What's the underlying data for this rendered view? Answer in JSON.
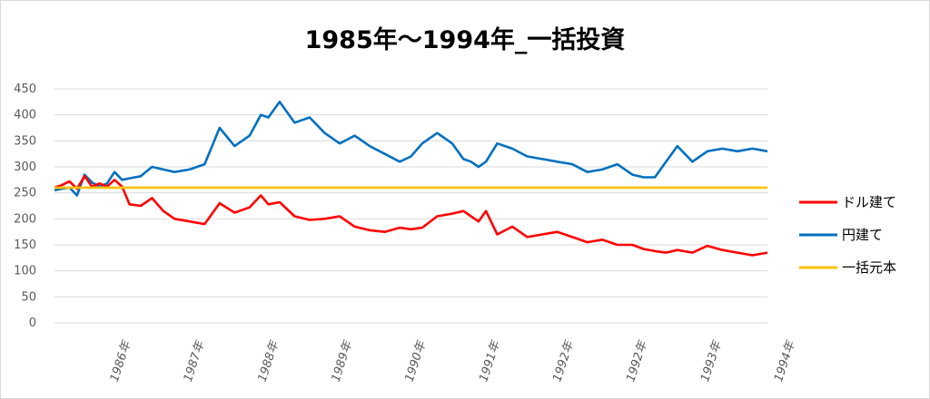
{
  "chart_data": {
    "type": "line",
    "title": "1985年～1994年_一括投資",
    "ylim": [
      0,
      450
    ],
    "yticks": [
      0,
      50,
      100,
      150,
      200,
      250,
      300,
      350,
      400,
      450
    ],
    "xlim": [
      1985.0,
      1994.5
    ],
    "xtick_labels": [
      "1986年",
      "1987年",
      "1988年",
      "1989年",
      "1990年",
      "1991年",
      "1992年",
      "1992年",
      "1993年",
      "1994年"
    ],
    "xtick_positions": [
      1985.95,
      1986.93,
      1987.92,
      1988.9,
      1989.88,
      1990.87,
      1991.85,
      1992.83,
      1993.82,
      1994.8
    ],
    "grid": true,
    "legend_position": "right",
    "series": [
      {
        "name": "ドル建て",
        "color": "#ff0000",
        "x": [
          1985.0,
          1985.1,
          1985.2,
          1985.3,
          1985.4,
          1985.5,
          1985.6,
          1985.7,
          1985.8,
          1985.9,
          1986.0,
          1986.15,
          1986.3,
          1986.45,
          1986.6,
          1986.8,
          1987.0,
          1987.2,
          1987.4,
          1987.6,
          1987.75,
          1987.85,
          1988.0,
          1988.2,
          1988.4,
          1988.6,
          1988.8,
          1989.0,
          1989.2,
          1989.4,
          1989.6,
          1989.75,
          1989.9,
          1990.1,
          1990.3,
          1990.45,
          1990.55,
          1990.65,
          1990.75,
          1990.9,
          1991.1,
          1991.3,
          1991.5,
          1991.7,
          1991.9,
          1992.1,
          1992.3,
          1992.5,
          1992.7,
          1992.85,
          1993.0,
          1993.15,
          1993.3,
          1993.5,
          1993.7,
          1993.9,
          1994.1,
          1994.3,
          1994.5
        ],
        "values": [
          260,
          265,
          272,
          258,
          282,
          262,
          268,
          262,
          275,
          262,
          228,
          225,
          240,
          215,
          200,
          195,
          190,
          230,
          212,
          222,
          245,
          228,
          232,
          205,
          198,
          200,
          205,
          185,
          178,
          175,
          183,
          180,
          183,
          205,
          210,
          215,
          205,
          195,
          215,
          170,
          185,
          165,
          170,
          175,
          165,
          155,
          160,
          150,
          150,
          142,
          138,
          135,
          140,
          135,
          148,
          140,
          135,
          130,
          135
        ]
      },
      {
        "name": "円建て",
        "color": "#0070c0",
        "x": [
          1985.0,
          1985.1,
          1985.2,
          1985.3,
          1985.4,
          1985.5,
          1985.6,
          1985.7,
          1985.8,
          1985.9,
          1986.0,
          1986.15,
          1986.3,
          1986.45,
          1986.6,
          1986.8,
          1987.0,
          1987.2,
          1987.4,
          1987.6,
          1987.75,
          1987.85,
          1988.0,
          1988.2,
          1988.4,
          1988.6,
          1988.8,
          1989.0,
          1989.2,
          1989.4,
          1989.6,
          1989.75,
          1989.9,
          1990.1,
          1990.3,
          1990.45,
          1990.55,
          1990.65,
          1990.75,
          1990.9,
          1991.1,
          1991.3,
          1991.5,
          1991.7,
          1991.9,
          1992.1,
          1992.3,
          1992.5,
          1992.7,
          1992.85,
          1993.0,
          1993.15,
          1993.3,
          1993.5,
          1993.7,
          1993.9,
          1994.1,
          1994.3,
          1994.5
        ],
        "values": [
          255,
          258,
          260,
          245,
          285,
          270,
          262,
          268,
          290,
          275,
          278,
          282,
          300,
          295,
          290,
          295,
          305,
          375,
          340,
          360,
          400,
          395,
          425,
          385,
          395,
          365,
          345,
          360,
          340,
          325,
          310,
          320,
          345,
          365,
          345,
          315,
          310,
          300,
          310,
          345,
          335,
          320,
          315,
          310,
          305,
          290,
          295,
          305,
          285,
          280,
          280,
          310,
          340,
          310,
          330,
          335,
          330,
          335,
          330
        ]
      },
      {
        "name": "一括元本",
        "color": "#ffc000",
        "x": [
          1985.0,
          1994.5
        ],
        "values": [
          260,
          260
        ]
      }
    ]
  }
}
